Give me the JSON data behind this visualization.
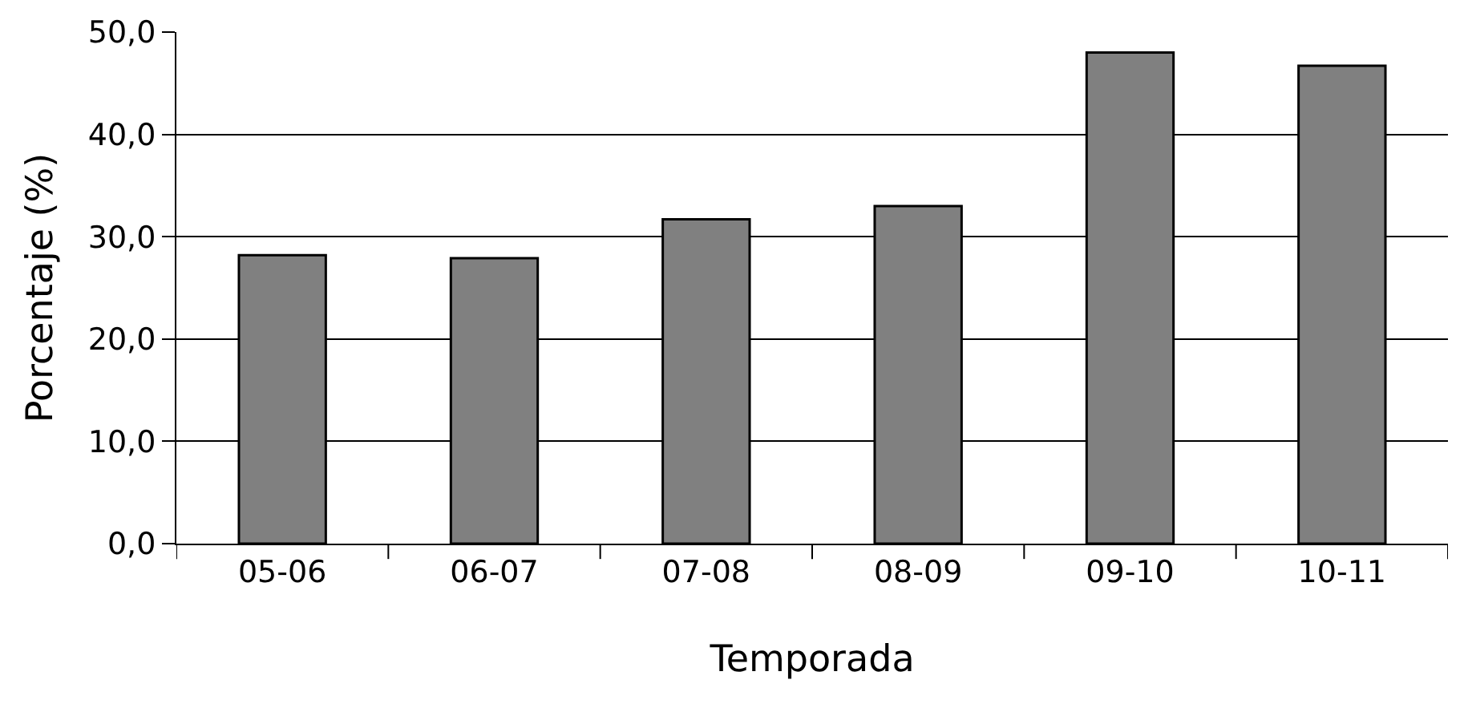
{
  "chart_data": {
    "type": "bar",
    "xlabel": "Temporada",
    "ylabel": "Porcentaje (%)",
    "categories": [
      "05-06",
      "06-07",
      "07-08",
      "08-09",
      "09-10",
      "10-11"
    ],
    "values": [
      28.2,
      27.9,
      31.7,
      33.0,
      48.0,
      46.7
    ],
    "color": "#808080",
    "ylim": [
      0,
      50
    ],
    "yticks": [
      {
        "value": 0,
        "label": "0,0"
      },
      {
        "value": 10,
        "label": "10,0"
      },
      {
        "value": 20,
        "label": "20,0"
      },
      {
        "value": 30,
        "label": "30,0"
      },
      {
        "value": 40,
        "label": "40,0"
      },
      {
        "value": 50,
        "label": "50,0"
      }
    ],
    "grid": "y"
  }
}
